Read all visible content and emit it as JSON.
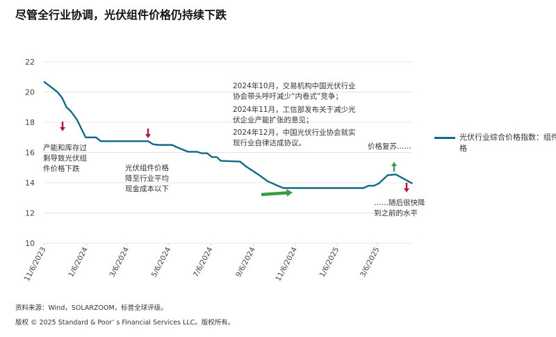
{
  "title": "尽管全行业协调，光伏组件价格仍持续下跌",
  "chart_data": {
    "type": "line",
    "title": "尽管全行业协调，光伏组件价格仍持续下跌",
    "xlabel": "",
    "ylabel": "",
    "ylim": [
      10,
      22
    ],
    "yticks": [
      10,
      12,
      14,
      16,
      18,
      20,
      22
    ],
    "xticks": [
      "11/6/2023",
      "1/6/2024",
      "3/6/2024",
      "5/6/2024",
      "7/6/2024",
      "9/6/2024",
      "11/6/2024",
      "1/6/2025",
      "3/6/2025"
    ],
    "grid": true,
    "legend_position": "right",
    "series": [
      {
        "name": "光伏行业综合价格指数：组件价格",
        "color": "#0e6a87",
        "points": [
          [
            "2023-11-06",
            20.7
          ],
          [
            "2023-11-26",
            20.0
          ],
          [
            "2023-12-03",
            19.6
          ],
          [
            "2023-12-09",
            19.0
          ],
          [
            "2023-12-16",
            18.7
          ],
          [
            "2023-12-24",
            18.2
          ],
          [
            "2024-01-06",
            17.0
          ],
          [
            "2024-01-21",
            17.0
          ],
          [
            "2024-01-28",
            16.75
          ],
          [
            "2024-04-06",
            16.75
          ],
          [
            "2024-04-13",
            16.55
          ],
          [
            "2024-04-21",
            16.5
          ],
          [
            "2024-05-11",
            16.5
          ],
          [
            "2024-05-18",
            16.35
          ],
          [
            "2024-06-03",
            16.05
          ],
          [
            "2024-06-16",
            16.05
          ],
          [
            "2024-06-23",
            15.95
          ],
          [
            "2024-07-01",
            15.95
          ],
          [
            "2024-07-08",
            15.7
          ],
          [
            "2024-07-15",
            15.7
          ],
          [
            "2024-07-21",
            15.45
          ],
          [
            "2024-08-18",
            15.4
          ],
          [
            "2024-08-26",
            15.1
          ],
          [
            "2024-09-15",
            14.5
          ],
          [
            "2024-09-27",
            14.1
          ],
          [
            "2024-10-12",
            13.8
          ],
          [
            "2024-10-20",
            13.65
          ],
          [
            "2025-02-14",
            13.65
          ],
          [
            "2025-02-21",
            13.8
          ],
          [
            "2025-03-01",
            13.8
          ],
          [
            "2025-03-08",
            13.95
          ],
          [
            "2025-03-21",
            14.5
          ],
          [
            "2025-04-02",
            14.55
          ],
          [
            "2025-04-10",
            14.35
          ],
          [
            "2025-04-26",
            13.95
          ]
        ]
      }
    ],
    "annotations": {
      "oversupply": "产能和库存过\n剩导致光伏组\n件价格下跌",
      "below_cost": "光伏组件价格\n降至行业平均\n现金成本以下",
      "policy_1": "2024年10月，交易机构中国光伏行业\n协会带头呼吁减少“内卷式”竞争；",
      "policy_2": "2024年11月，工信部发布关于减少光\n伏企业产能扩张的意见；",
      "policy_3": "2024年12月，中国光伏行业协会就实\n现行业自律达成协议。",
      "recovery": "价格复苏……",
      "fall_back": "……随后很快降\n到之前的水平"
    },
    "arrow_colors": {
      "down": "#b5164a",
      "up": "#3a9a46"
    }
  },
  "footer": {
    "source": "资料来源：Wind，SOLARZOOM，标普全球评级。",
    "copyright": "版权 © 2025 Standard & Poor’ s Financial Services LLC。版权所有。"
  }
}
